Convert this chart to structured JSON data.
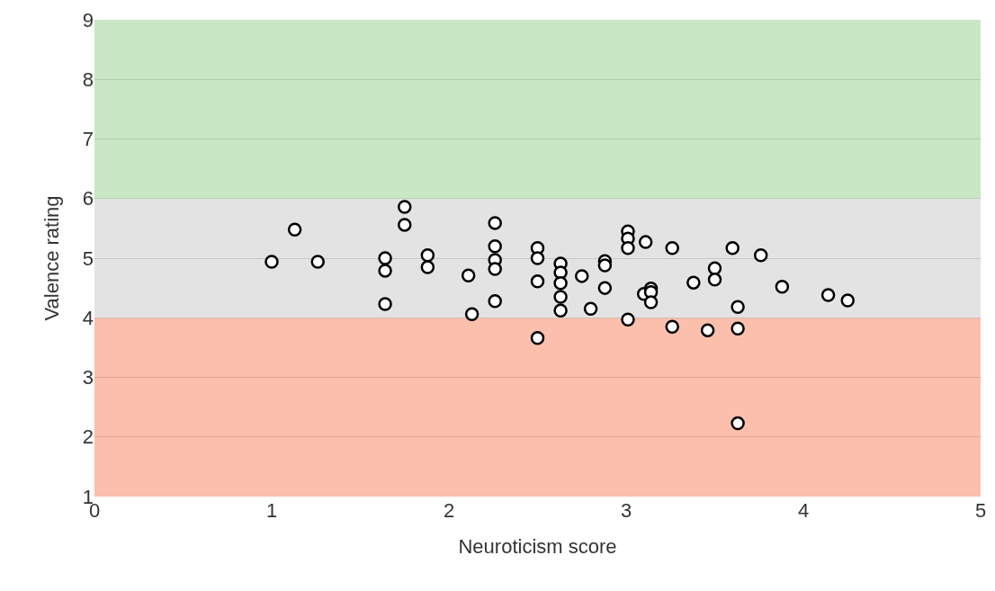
{
  "chart_data": {
    "type": "scatter",
    "xlabel": "Neuroticism score",
    "ylabel": "Valence rating",
    "x": [
      1.0,
      1.13,
      1.26,
      1.64,
      1.64,
      1.64,
      1.75,
      1.75,
      1.88,
      1.88,
      2.11,
      2.13,
      2.26,
      2.26,
      2.26,
      2.26,
      2.26,
      2.5,
      2.5,
      2.5,
      2.5,
      2.63,
      2.63,
      2.63,
      2.63,
      2.63,
      2.75,
      2.8,
      2.88,
      2.88,
      2.88,
      3.01,
      3.01,
      3.01,
      3.01,
      3.11,
      3.1,
      3.14,
      3.14,
      3.14,
      3.26,
      3.26,
      3.38,
      3.46,
      3.5,
      3.5,
      3.6,
      3.63,
      3.63,
      3.76,
      3.88,
      4.14,
      4.25,
      3.63
    ],
    "series": [
      {
        "color": "#000000",
        "values": [
          4.94,
          5.48,
          4.94,
          5.0,
          4.79,
          4.23,
          5.86,
          5.56,
          5.05,
          4.85,
          4.71,
          4.06,
          5.59,
          5.2,
          4.97,
          4.82,
          4.28,
          5.17,
          5.0,
          4.61,
          3.66,
          4.91,
          4.76,
          4.58,
          4.35,
          4.12,
          4.7,
          4.15,
          4.95,
          4.88,
          4.5,
          5.45,
          5.33,
          5.17,
          3.97,
          5.27,
          4.4,
          4.49,
          4.43,
          4.26,
          5.17,
          3.85,
          4.59,
          3.79,
          4.83,
          4.64,
          5.17,
          4.18,
          3.82,
          5.05,
          4.52,
          4.38,
          4.29,
          2.23
        ]
      }
    ],
    "marker": "circle",
    "xlim": [
      0,
      5
    ],
    "xticks": [
      0,
      1,
      2,
      3,
      4,
      5
    ],
    "ylim": [
      1,
      9
    ],
    "yticks": [
      1,
      2,
      3,
      4,
      5,
      6,
      7,
      8,
      9
    ],
    "grid": "y",
    "bands": [
      {
        "axis": "y",
        "from": 1,
        "to": 4,
        "color": "#fbbfab"
      },
      {
        "axis": "y",
        "from": 4,
        "to": 6,
        "color": "#e3e3e3"
      },
      {
        "axis": "y",
        "from": 6,
        "to": 9,
        "color": "#c9e7c5"
      }
    ]
  }
}
